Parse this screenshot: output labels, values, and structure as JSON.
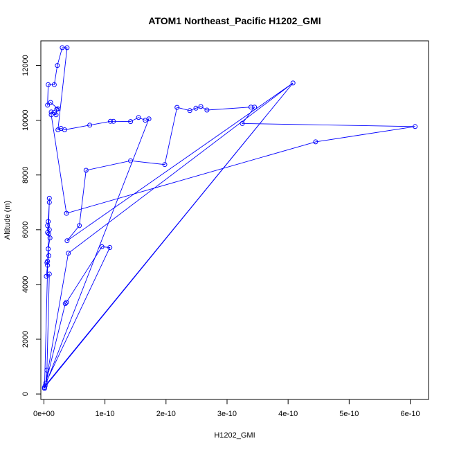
{
  "chart_data": {
    "type": "scatter",
    "title": "ATOM1 Northeast_Pacific H1202_GMI",
    "xlabel": "H1202_GMI",
    "ylabel": "Altitude (m)",
    "xlim": [
      -5e-12,
      6.3e-10
    ],
    "ylim": [
      -200,
      12900
    ],
    "x_ticks": [
      0,
      1e-10,
      2e-10,
      3e-10,
      4e-10,
      5e-10,
      6e-10
    ],
    "x_tick_labels": [
      "0e+00",
      "1e-10",
      "2e-10",
      "3e-10",
      "4e-10",
      "5e-10",
      "6e-10"
    ],
    "y_ticks": [
      0,
      2000,
      4000,
      6000,
      8000,
      10000,
      12000
    ],
    "y_tick_labels": [
      "0",
      "2000",
      "4000",
      "6000",
      "8000",
      "10000",
      "12000"
    ],
    "grid": false,
    "legend": "none",
    "series_color": "#0000ff",
    "points": [
      [
        1e-12,
        200
      ],
      [
        1e-12,
        240
      ],
      [
        2e-12,
        300
      ],
      [
        3e-12,
        400
      ],
      [
        5e-12,
        870
      ],
      [
        4e-12,
        4300
      ],
      [
        6e-12,
        4700
      ],
      [
        5e-12,
        4800
      ],
      [
        6e-12,
        4850
      ],
      [
        8e-12,
        5050
      ],
      [
        7e-12,
        5300
      ],
      [
        1e-11,
        5700
      ],
      [
        8e-12,
        5850
      ],
      [
        6e-12,
        5900
      ],
      [
        9e-12,
        6000
      ],
      [
        6e-12,
        6150
      ],
      [
        7e-12,
        6300
      ],
      [
        9e-12,
        7000
      ],
      [
        9e-12,
        7150
      ],
      [
        9e-12,
        4380
      ],
      [
        3.5e-11,
        3300
      ],
      [
        3.7e-11,
        3350
      ],
      [
        9.5e-11,
        5380
      ],
      [
        1.08e-10,
        5350
      ],
      [
        4e-11,
        5140
      ],
      [
        3.8e-11,
        5600
      ],
      [
        5.8e-11,
        6150
      ],
      [
        3.7e-11,
        6600
      ],
      [
        1.2e-11,
        10200
      ],
      [
        1.2e-11,
        10300
      ],
      [
        1.7e-11,
        10280
      ],
      [
        2e-11,
        10200
      ],
      [
        2.1e-11,
        10400
      ],
      [
        2.3e-11,
        10420
      ],
      [
        1.1e-11,
        10650
      ],
      [
        6e-12,
        10550
      ],
      [
        7e-12,
        11300
      ],
      [
        1.7e-11,
        11300
      ],
      [
        2.2e-11,
        12000
      ],
      [
        3e-11,
        12650
      ],
      [
        3.8e-11,
        12650
      ],
      [
        2.3e-11,
        9650
      ],
      [
        2.8e-11,
        9700
      ],
      [
        3.4e-11,
        9650
      ],
      [
        7.5e-11,
        9820
      ],
      [
        1.09e-10,
        9960
      ],
      [
        1.14e-10,
        9960
      ],
      [
        1.42e-10,
        9950
      ],
      [
        1.55e-10,
        10100
      ],
      [
        1.66e-10,
        10000
      ],
      [
        1.72e-10,
        10050
      ],
      [
        6.9e-11,
        8170
      ],
      [
        1.42e-10,
        8520
      ],
      [
        1.98e-10,
        8380
      ],
      [
        2.18e-10,
        10470
      ],
      [
        2.39e-10,
        10350
      ],
      [
        2.49e-10,
        10440
      ],
      [
        2.57e-10,
        10500
      ],
      [
        2.67e-10,
        10370
      ],
      [
        3.39e-10,
        10480
      ],
      [
        3.45e-10,
        10480
      ],
      [
        3.25e-10,
        9880
      ],
      [
        4.08e-10,
        11360
      ],
      [
        4.45e-10,
        9210
      ],
      [
        6.08e-10,
        9770
      ]
    ],
    "path_order": [
      0,
      1,
      2,
      3,
      4,
      19,
      5,
      6,
      7,
      8,
      9,
      10,
      11,
      12,
      13,
      14,
      15,
      16,
      17,
      18,
      0,
      20,
      21,
      22,
      23,
      3,
      24,
      62,
      25,
      26,
      51,
      52,
      53,
      54,
      55,
      56,
      57,
      58,
      59,
      60,
      61,
      64,
      63,
      27,
      28,
      29,
      30,
      31,
      32,
      33,
      34,
      35,
      36,
      37,
      38,
      39,
      40,
      41,
      42,
      43,
      44,
      45,
      46,
      47,
      48,
      49,
      50,
      2,
      62,
      1
    ]
  }
}
